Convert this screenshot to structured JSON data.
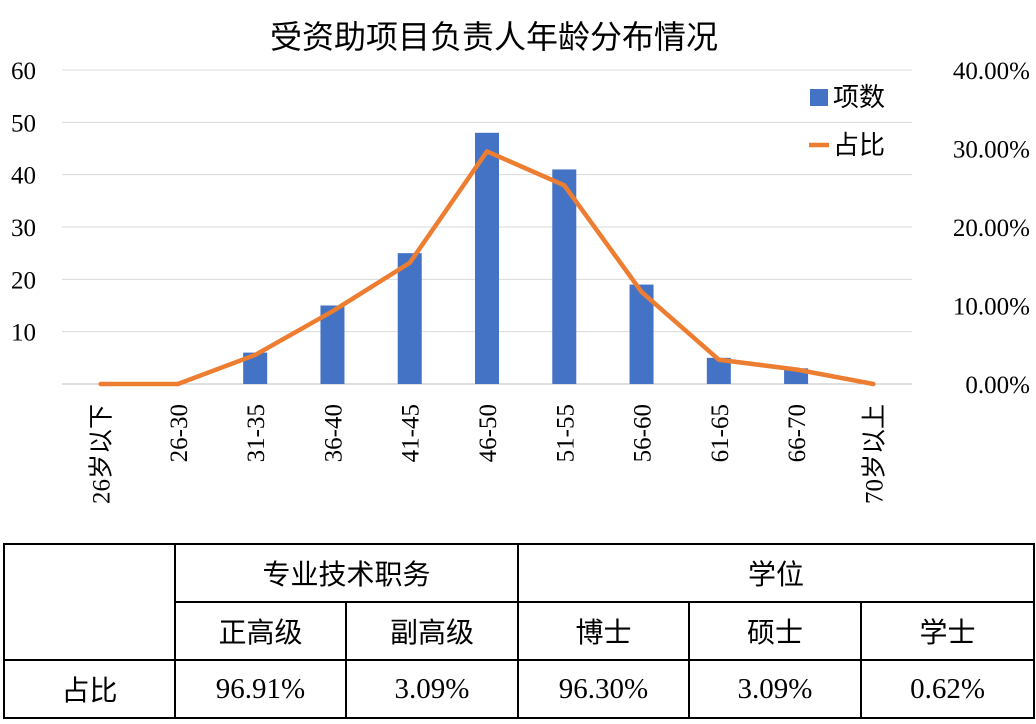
{
  "chart_data": {
    "type": "bar+line",
    "title": "受资助项目负责人年龄分布情况",
    "categories": [
      "26岁以下",
      "26-30",
      "31-35",
      "36-40",
      "41-45",
      "46-50",
      "51-55",
      "56-60",
      "61-65",
      "66-70",
      "70岁以上"
    ],
    "series": [
      {
        "name": "项数",
        "type": "bar",
        "axis": "left",
        "color": "#4472C4",
        "values": [
          0,
          0,
          6,
          15,
          25,
          48,
          41,
          19,
          5,
          3,
          0
        ]
      },
      {
        "name": "占比",
        "type": "line",
        "axis": "right",
        "color": "#ED7D31",
        "values": [
          0,
          0,
          3.7,
          9.26,
          15.43,
          29.63,
          25.31,
          11.73,
          3.09,
          1.85,
          0
        ]
      }
    ],
    "y_left": {
      "range": [
        0,
        60
      ],
      "ticks": [
        "",
        "10",
        "20",
        "30",
        "40",
        "50",
        "60"
      ]
    },
    "y_right": {
      "range": [
        0,
        40
      ],
      "ticks": [
        "0.00%",
        "10.00%",
        "20.00%",
        "30.00%",
        "40.00%"
      ]
    },
    "grid": true,
    "legend_position": "top-right"
  },
  "table": {
    "group_headers": [
      "专业技术职务",
      "学位"
    ],
    "sub_headers": [
      "正高级",
      "副高级",
      "博士",
      "硕士",
      "学士"
    ],
    "row_label": "占比",
    "row_values": [
      "96.91%",
      "3.09%",
      "96.30%",
      "3.09%",
      "0.62%"
    ]
  }
}
